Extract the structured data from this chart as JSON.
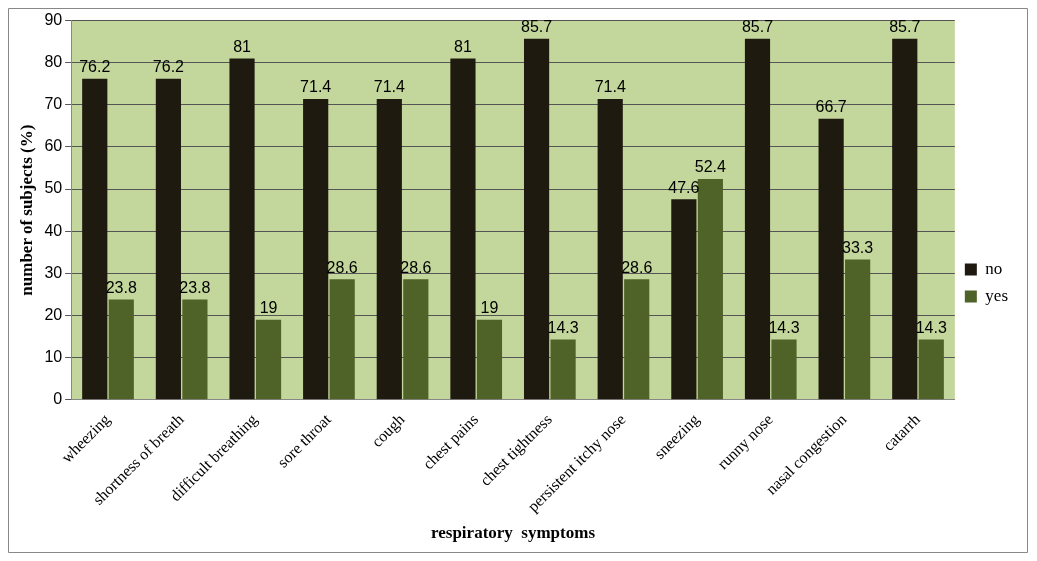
{
  "chart_data": {
    "type": "bar",
    "xlabel": "respiratory  symptoms",
    "ylabel": "number of subjects (%)",
    "categories": [
      "wheezing",
      "shortness of breath",
      "difficult breathing",
      "sore throat",
      "cough",
      "chest pains",
      "chest tightness",
      "persistent itchy nose",
      "sneezing",
      "runny nose",
      "nasal congestion",
      "catarrh"
    ],
    "series": [
      {
        "name": "no",
        "color": "#1f1a10",
        "values": [
          76.2,
          76.2,
          81,
          71.4,
          71.4,
          81,
          85.7,
          71.4,
          47.6,
          85.7,
          66.7,
          85.7
        ]
      },
      {
        "name": "yes",
        "color": "#4f6228",
        "values": [
          23.8,
          23.8,
          19,
          28.6,
          28.6,
          19,
          14.3,
          28.6,
          52.4,
          14.3,
          33.3,
          14.3
        ]
      }
    ],
    "ylim": [
      0,
      90
    ],
    "yticks": [
      0,
      10,
      20,
      30,
      40,
      50,
      60,
      70,
      80,
      90
    ],
    "grid": "y",
    "legend": "right",
    "data_labels": true
  }
}
